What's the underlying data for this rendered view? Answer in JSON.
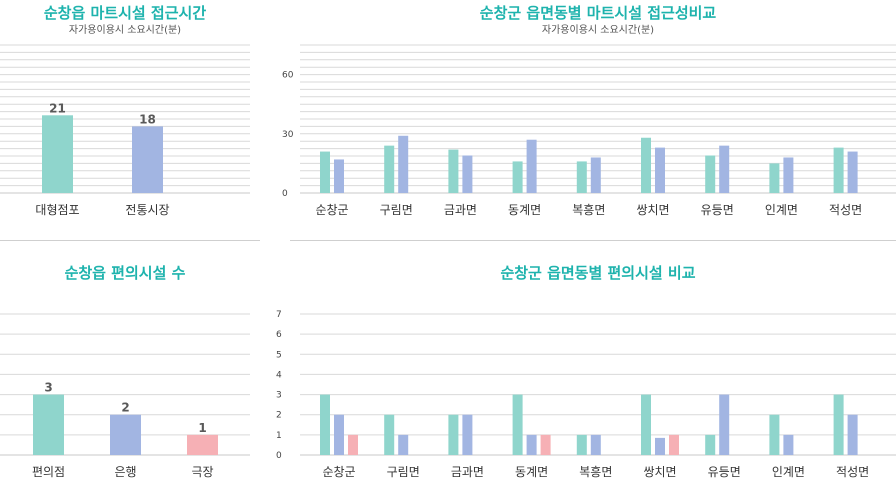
{
  "colors": {
    "title": "#1eb3ad",
    "teal": "#8fd5cc",
    "blue": "#a2b5e2",
    "pink": "#f6b0b5",
    "grid": "#d9d9d9"
  },
  "panels": {
    "p1": {
      "title": "순창읍 마트시설 접근시간",
      "subtitle": "자가용이용시 소요시간(분)"
    },
    "p2": {
      "title": "순창군 읍면동별 마트시설 접근성비교",
      "subtitle": "자가용이용시 소요시간(분)"
    },
    "p3": {
      "title": "순창읍 편의시설 수",
      "subtitle": ""
    },
    "p4": {
      "title": "순창군 읍면동별 편의시설  비교",
      "subtitle": ""
    }
  },
  "chart_data": [
    {
      "id": "p1",
      "type": "bar",
      "categories": [
        "대형점포",
        "전통시장"
      ],
      "values": [
        21,
        18
      ],
      "colors": [
        "#8fd5cc",
        "#a2b5e2"
      ],
      "data_labels": true,
      "ylim": [
        0,
        40
      ],
      "grid": true
    },
    {
      "id": "p2",
      "type": "bar",
      "categories": [
        "순창군",
        "구림면",
        "금과면",
        "동계면",
        "복흥면",
        "쌍치면",
        "유등면",
        "인계면",
        "적성면"
      ],
      "series": [
        {
          "values": [
            21,
            24,
            22,
            16,
            16,
            28,
            19,
            15,
            23
          ],
          "color": "#8fd5cc"
        },
        {
          "values": [
            17,
            29,
            19,
            27,
            18,
            23,
            24,
            18,
            21
          ],
          "color": "#a2b5e2"
        }
      ],
      "yticks": [
        "0",
        "30",
        "60"
      ],
      "ylim": [
        0,
        75
      ],
      "grid": true
    },
    {
      "id": "p3",
      "type": "bar",
      "categories": [
        "편의점",
        "은행",
        "극장"
      ],
      "values": [
        3,
        2,
        1
      ],
      "colors": [
        "#8fd5cc",
        "#a2b5e2",
        "#f6b0b5"
      ],
      "data_labels": true,
      "ylim": [
        0,
        7
      ],
      "grid": true
    },
    {
      "id": "p4",
      "type": "bar",
      "categories": [
        "순창군",
        "구림면",
        "금과면",
        "동계면",
        "복흥면",
        "쌍치면",
        "유등면",
        "인계면",
        "적성면"
      ],
      "series": [
        {
          "values": [
            3,
            2,
            2,
            3,
            1,
            3,
            1,
            2,
            3
          ],
          "color": "#8fd5cc"
        },
        {
          "values": [
            2,
            1,
            2,
            1,
            1,
            0.85,
            3,
            1,
            2
          ],
          "color": "#a2b5e2"
        },
        {
          "values": [
            1,
            0,
            0,
            1,
            0,
            1,
            0,
            0,
            0
          ],
          "color": "#f6b0b5"
        }
      ],
      "yticks": [
        "0",
        "1",
        "2",
        "3",
        "4",
        "5",
        "6",
        "7"
      ],
      "ylim": [
        0,
        7
      ],
      "grid": true
    }
  ]
}
